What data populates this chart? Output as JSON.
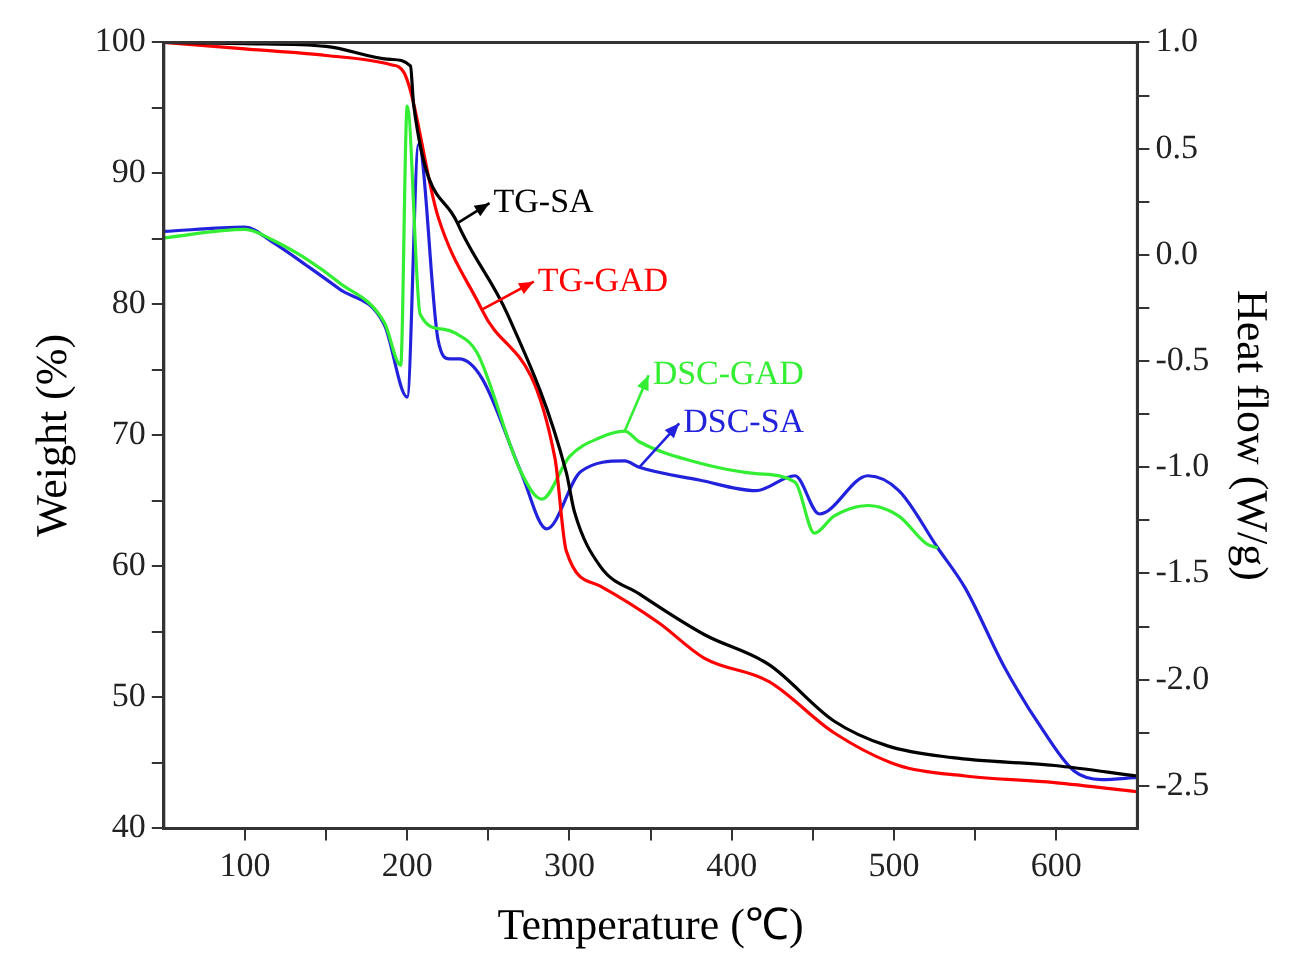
{
  "chart_data": {
    "type": "line",
    "xlabel": "Temperature (℃)",
    "ylabel": "Weight (%)",
    "y2label": "Heat flow (W/g)",
    "xlim": [
      50,
      650
    ],
    "xticks": [
      100,
      200,
      300,
      400,
      500,
      600,
      {
        "value": 150,
        "label": null
      },
      {
        "value": 250,
        "label": null
      },
      {
        "value": 350,
        "label": null
      },
      {
        "value": 450,
        "label": null
      },
      {
        "value": 550,
        "label": null
      }
    ],
    "ylim": [
      40,
      100
    ],
    "yticks": [
      40,
      50,
      60,
      70,
      80,
      90,
      100,
      {
        "value": 45,
        "label": null
      },
      {
        "value": 55,
        "label": null
      },
      {
        "value": 65,
        "label": null
      },
      {
        "value": 75,
        "label": null
      },
      {
        "value": 85,
        "label": null
      },
      {
        "value": 95,
        "label": null
      }
    ],
    "y2lim": [
      -2.7,
      1.0
    ],
    "y2ticks": [
      {
        "value": 1,
        "label": "1.0"
      },
      {
        "value": 0.5,
        "label": "0.5"
      },
      {
        "value": 0,
        "label": "0.0"
      },
      {
        "value": -0.5,
        "label": "-0.5"
      },
      {
        "value": -1,
        "label": "-1.0"
      },
      {
        "value": -1.5,
        "label": "-1.5"
      },
      {
        "value": -2,
        "label": "-2.0"
      },
      {
        "value": -2.5,
        "label": "-2.5"
      },
      {
        "value": 0.75,
        "label": null
      },
      {
        "value": 0.25,
        "label": null
      },
      {
        "value": -0.25,
        "label": null
      },
      {
        "value": -0.75,
        "label": null
      },
      {
        "value": -1.25,
        "label": null
      },
      {
        "value": -1.75,
        "label": null
      },
      {
        "value": -2.25,
        "label": null
      }
    ],
    "grid": false,
    "legend": "top",
    "marker": "none",
    "line_style": "solid",
    "series": [
      {
        "name": "TG-SA",
        "color": "#000000",
        "x": [
          50,
          100,
          150,
          190,
          202,
          204,
          231,
          262,
          298,
          303,
          319,
          343,
          383,
          423,
          463,
          496,
          536,
          599,
          650
        ],
        "values": [
          100,
          99.9,
          99.7,
          98.7,
          98.2,
          95.2,
          86.2,
          79.2,
          67.2,
          64.2,
          60.0,
          57.9,
          54.8,
          52.5,
          48.2,
          46.3,
          45.4,
          44.8,
          44.0
        ]
      },
      {
        "name": "TG-GAD",
        "color": "#ff0000",
        "x": [
          50,
          100,
          150,
          190,
          198,
          219,
          246,
          291,
          298,
          319,
          355,
          383,
          423,
          463,
          503,
          544,
          599,
          650
        ],
        "values": [
          100,
          99.5,
          99.0,
          98.3,
          97.7,
          86.7,
          79.6,
          68.3,
          61.2,
          58.5,
          55.7,
          53.0,
          51.2,
          47.3,
          44.8,
          44.0,
          43.5,
          42.8
        ]
      },
      {
        "name": "DSC-GAD",
        "color": "#33ee33",
        "axis": "y2",
        "x": [
          50,
          100,
          117,
          138,
          158,
          186,
          196,
          200,
          208,
          222,
          230,
          243,
          270,
          283,
          300,
          319,
          334,
          343,
          380,
          415,
          439,
          451,
          463,
          484,
          503,
          520,
          527
        ],
        "values": [
          0.08,
          0.12,
          0.07,
          -0.02,
          -0.13,
          -0.32,
          -0.52,
          0.7,
          -0.28,
          -0.35,
          -0.37,
          -0.46,
          -1.02,
          -1.15,
          -0.95,
          -0.86,
          -0.83,
          -0.88,
          -0.98,
          -1.03,
          -1.07,
          -1.31,
          -1.23,
          -1.18,
          -1.23,
          -1.36,
          -1.38
        ]
      },
      {
        "name": "DSC-SA",
        "color": "#2222dd",
        "axis": "y2",
        "x": [
          50,
          100,
          117,
          138,
          158,
          186,
          200,
          207,
          219,
          226,
          232,
          246,
          270,
          286,
          307,
          334,
          343,
          380,
          415,
          439,
          454,
          484,
          503,
          527,
          544,
          568,
          592,
          611,
          628,
          650
        ],
        "values": [
          0.11,
          0.13,
          0.06,
          -0.05,
          -0.16,
          -0.33,
          -0.67,
          0.52,
          -0.4,
          -0.49,
          -0.49,
          -0.58,
          -1.02,
          -1.29,
          -1.02,
          -0.97,
          -1.0,
          -1.06,
          -1.11,
          -1.04,
          -1.22,
          -1.04,
          -1.11,
          -1.38,
          -1.57,
          -1.94,
          -2.24,
          -2.43,
          -2.47,
          -2.46
        ]
      }
    ]
  }
}
